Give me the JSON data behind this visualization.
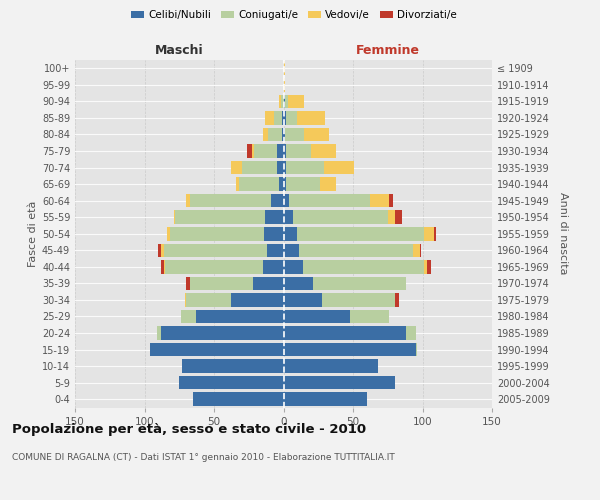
{
  "age_groups": [
    "0-4",
    "5-9",
    "10-14",
    "15-19",
    "20-24",
    "25-29",
    "30-34",
    "35-39",
    "40-44",
    "45-49",
    "50-54",
    "55-59",
    "60-64",
    "65-69",
    "70-74",
    "75-79",
    "80-84",
    "85-89",
    "90-94",
    "95-99",
    "100+"
  ],
  "birth_years": [
    "2005-2009",
    "2000-2004",
    "1995-1999",
    "1990-1994",
    "1985-1989",
    "1980-1984",
    "1975-1979",
    "1970-1974",
    "1965-1969",
    "1960-1964",
    "1955-1959",
    "1950-1954",
    "1945-1949",
    "1940-1944",
    "1935-1939",
    "1930-1934",
    "1925-1929",
    "1920-1924",
    "1915-1919",
    "1910-1914",
    "≤ 1909"
  ],
  "male_celibe": [
    65,
    75,
    73,
    96,
    88,
    63,
    38,
    22,
    15,
    12,
    14,
    13,
    9,
    3,
    5,
    5,
    1,
    1,
    0,
    0,
    0
  ],
  "male_coniugato": [
    0,
    0,
    0,
    0,
    3,
    11,
    32,
    45,
    70,
    74,
    68,
    65,
    58,
    29,
    25,
    16,
    10,
    6,
    2,
    0,
    0
  ],
  "male_vedovo": [
    0,
    0,
    0,
    0,
    0,
    0,
    1,
    0,
    1,
    2,
    2,
    1,
    3,
    2,
    8,
    2,
    4,
    6,
    1,
    0,
    0
  ],
  "male_divorziato": [
    0,
    0,
    0,
    0,
    0,
    0,
    0,
    3,
    2,
    2,
    0,
    0,
    0,
    0,
    0,
    3,
    0,
    0,
    0,
    0,
    0
  ],
  "fem_nubile": [
    60,
    80,
    68,
    95,
    88,
    48,
    28,
    21,
    14,
    11,
    10,
    7,
    4,
    2,
    2,
    2,
    1,
    2,
    1,
    0,
    0
  ],
  "fem_coniugata": [
    0,
    0,
    0,
    1,
    7,
    28,
    52,
    67,
    87,
    82,
    91,
    68,
    58,
    24,
    27,
    18,
    14,
    8,
    2,
    0,
    0
  ],
  "fem_vedova": [
    0,
    0,
    0,
    0,
    0,
    0,
    0,
    0,
    2,
    5,
    7,
    5,
    14,
    12,
    22,
    18,
    18,
    20,
    12,
    1,
    1
  ],
  "fem_divorziata": [
    0,
    0,
    0,
    0,
    0,
    0,
    3,
    0,
    3,
    1,
    2,
    5,
    3,
    0,
    0,
    0,
    0,
    0,
    0,
    0,
    0
  ],
  "color_celibe": "#3b6ea5",
  "color_coniugato": "#b8cfa0",
  "color_vedovo": "#f5c95a",
  "color_divorziato": "#c0392b",
  "xlim": 150,
  "title": "Popolazione per età, sesso e stato civile - 2010",
  "subtitle": "COMUNE DI RAGALNA (CT) - Dati ISTAT 1° gennaio 2010 - Elaborazione TUTTITALIA.IT",
  "label_maschi": "Maschi",
  "label_femmine": "Femmine",
  "ylabel_left": "Fasce di età",
  "ylabel_right": "Anni di nascita",
  "bg_color": "#f2f2f2",
  "plot_bg": "#e4e4e4"
}
